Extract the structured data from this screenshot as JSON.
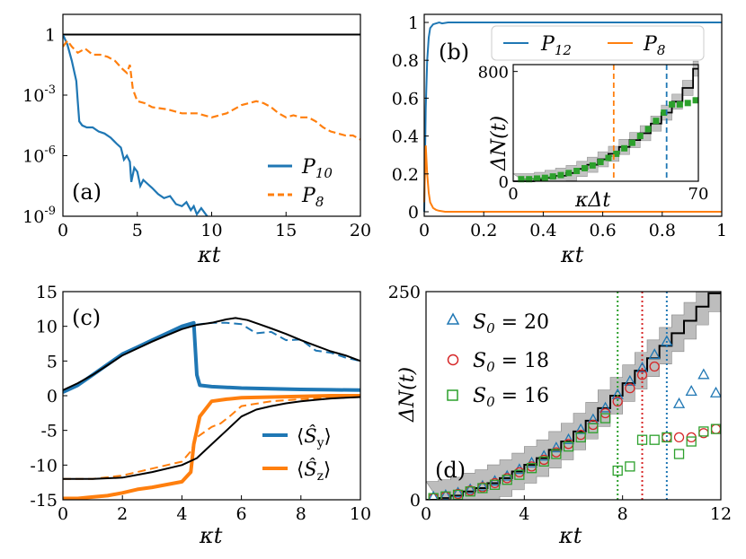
{
  "colors": {
    "blue": "#1f77b4",
    "orange": "#ff7f0e",
    "green": "#2ca02c",
    "red": "#d62728",
    "black": "#000000",
    "band": "#bdbdbd"
  },
  "chart_data": [
    {
      "panel": "(a)",
      "type": "line",
      "xlabel": "κt",
      "ylabel": "",
      "xlim": [
        0,
        20
      ],
      "ylim_log10": [
        -9,
        1
      ],
      "yscale": "log",
      "xticks": [
        "0",
        "5",
        "10",
        "15",
        "20"
      ],
      "yticks": [
        "10^-9",
        "10^-6",
        "10^-3",
        "1"
      ],
      "legend": "lower-right",
      "series": [
        {
          "name": "P10",
          "style": "solid",
          "color": "blue",
          "x": [
            0,
            0.3,
            0.6,
            0.9,
            1.0,
            1.1,
            1.3,
            1.6,
            2,
            2.4,
            2.8,
            3.2,
            3.6,
            3.9,
            4.1,
            4.3,
            4.5,
            4.6,
            4.8,
            5.0,
            5.2,
            5.4,
            5.7,
            6.0,
            6.4,
            6.8,
            7.2,
            7.6,
            8.0,
            8.3,
            8.6,
            8.8,
            9.0,
            9.3,
            9.6,
            9.8
          ],
          "log10y": [
            0,
            -0.5,
            -1.3,
            -2.3,
            -3.3,
            -4.3,
            -4.5,
            -4.6,
            -4.6,
            -4.8,
            -4.9,
            -5.1,
            -5.4,
            -5.6,
            -6.2,
            -6.0,
            -6.3,
            -7.3,
            -6.6,
            -6.8,
            -7.5,
            -7.2,
            -7.4,
            -7.6,
            -7.9,
            -8.1,
            -8.0,
            -8.4,
            -8.5,
            -8.3,
            -8.7,
            -8.5,
            -8.9,
            -8.6,
            -8.9,
            -9.1
          ]
        },
        {
          "name": "P8",
          "style": "dashed",
          "color": "orange",
          "x": [
            0,
            0.3,
            0.6,
            1.0,
            1.5,
            2.0,
            2.5,
            3.0,
            3.5,
            4.0,
            4.3,
            4.5,
            4.7,
            5.0,
            5.5,
            6.0,
            7.0,
            8.0,
            9.0,
            10.0,
            11.0,
            11.5,
            12.0,
            12.5,
            13.0,
            13.5,
            14.0,
            14.5,
            15.0,
            15.5,
            16.0,
            16.5,
            17.0,
            17.5,
            18.0,
            18.5,
            19.0,
            19.5,
            20.0
          ],
          "log10y": [
            -0.6,
            -0.3,
            -0.6,
            -0.9,
            -0.7,
            -1.0,
            -1.0,
            -1.1,
            -1.3,
            -1.7,
            -1.9,
            -1.5,
            -2.7,
            -3.3,
            -3.4,
            -3.6,
            -3.7,
            -3.9,
            -3.9,
            -4.1,
            -3.9,
            -3.7,
            -3.5,
            -3.4,
            -3.3,
            -3.4,
            -3.6,
            -3.9,
            -4.1,
            -4.0,
            -4.1,
            -4.1,
            -4.3,
            -4.6,
            -4.8,
            -4.9,
            -5.0,
            -5.0,
            -5.2
          ]
        }
      ],
      "legend_entries": [
        "P10",
        "P8"
      ]
    },
    {
      "panel": "(b)",
      "type": "line",
      "xlabel": "κt",
      "ylabel": "",
      "xlim": [
        0,
        1
      ],
      "ylim": [
        0,
        1
      ],
      "xticks": [
        "0",
        "0.2",
        "0.4",
        "0.6",
        "0.8",
        "1"
      ],
      "yticks": [
        "0",
        "0.2",
        "0.4",
        "0.6",
        "0.8",
        "1"
      ],
      "legend": "upper-center",
      "series": [
        {
          "name": "P12",
          "color": "blue",
          "x": [
            0,
            0.005,
            0.01,
            0.015,
            0.02,
            0.03,
            0.04,
            0.05,
            0.06,
            0.08,
            1.0
          ],
          "y": [
            0,
            0.55,
            0.8,
            0.92,
            0.97,
            0.99,
            0.995,
            1.0,
            0.995,
            1.0,
            1.0
          ]
        },
        {
          "name": "P8",
          "color": "orange",
          "x": [
            0,
            0.005,
            0.01,
            0.015,
            0.02,
            0.03,
            0.04,
            0.05,
            0.07,
            1.0
          ],
          "y": [
            0.05,
            0.35,
            0.2,
            0.1,
            0.05,
            0.02,
            0.01,
            0.005,
            0.0,
            0.0
          ]
        }
      ],
      "legend_entries": [
        "P12",
        "P8"
      ],
      "inset": {
        "xlabel": "κΔt",
        "ylabel": "ΔN(t)",
        "xlim": [
          0,
          70
        ],
        "ylim": [
          0,
          850
        ],
        "xticks": [
          "0",
          "70"
        ],
        "yticks": [
          "0",
          "800"
        ],
        "vlines": [
          {
            "x": 38,
            "color": "orange"
          },
          {
            "x": 58,
            "color": "blue"
          }
        ],
        "staircase_x": [
          0,
          4,
          8,
          12,
          16,
          20,
          24,
          28,
          32,
          36,
          40,
          44,
          48,
          52,
          56,
          60,
          64,
          68,
          70
        ],
        "staircase_y": [
          0,
          0,
          10,
          25,
          40,
          60,
          90,
          120,
          160,
          200,
          250,
          300,
          350,
          420,
          500,
          580,
          680,
          820,
          820
        ],
        "green_x": [
          3,
          6,
          9,
          12,
          15,
          18,
          21,
          24,
          27,
          30,
          33,
          36,
          39,
          42,
          45,
          48,
          51,
          54,
          57,
          60,
          63,
          66,
          69
        ],
        "green_y": [
          15,
          15,
          20,
          25,
          35,
          45,
          60,
          75,
          95,
          115,
          140,
          170,
          200,
          240,
          280,
          330,
          380,
          440,
          500,
          560,
          560,
          570,
          590
        ]
      }
    },
    {
      "panel": "(c)",
      "type": "line",
      "xlabel": "κt",
      "ylabel": "",
      "xlim": [
        0,
        10
      ],
      "ylim": [
        -15,
        15
      ],
      "xticks": [
        "0",
        "2",
        "4",
        "6",
        "8",
        "10"
      ],
      "yticks": [
        "-15",
        "-10",
        "-5",
        "0",
        "5",
        "10",
        "15"
      ],
      "legend": "lower-right",
      "legend_entries": [
        "⟨Ŝ_y⟩",
        "⟨Ŝ_z⟩"
      ],
      "series": [
        {
          "name": "Sy thick",
          "color": "blue",
          "width": 4,
          "x": [
            0,
            0.5,
            1,
            1.5,
            2,
            2.5,
            3,
            3.5,
            4,
            4.4,
            4.5,
            4.6,
            5,
            6,
            7,
            8,
            9,
            10
          ],
          "y": [
            0.5,
            1.5,
            3,
            4.5,
            6,
            7,
            8,
            9,
            10,
            10.5,
            3,
            1.5,
            1.3,
            1.1,
            1.0,
            0.9,
            0.85,
            0.8
          ]
        },
        {
          "name": "Sy dashed",
          "color": "blue",
          "style": "dashed",
          "width": 2,
          "x": [
            0,
            1,
            2,
            3,
            4,
            5,
            5.5,
            6,
            6.5,
            7,
            7.5,
            8,
            8.5,
            9,
            9.5,
            10
          ],
          "y": [
            0.5,
            3,
            6,
            8,
            10,
            10.5,
            10.5,
            10.3,
            9,
            9.2,
            8,
            8.1,
            6.5,
            6.2,
            5.5,
            5.0
          ]
        },
        {
          "name": "Sy black",
          "color": "black",
          "width": 2,
          "x": [
            0,
            0.5,
            1,
            1.5,
            2,
            2.5,
            3,
            3.5,
            4,
            4.5,
            5,
            5.5,
            5.8,
            6.2,
            6.6,
            7,
            7.5,
            8,
            8.5,
            9,
            9.5,
            10
          ],
          "y": [
            0.8,
            1.8,
            3,
            4.4,
            5.8,
            6.8,
            7.8,
            8.7,
            9.6,
            10.2,
            10.5,
            11,
            11.2,
            10.9,
            10.3,
            9.7,
            8.9,
            8.0,
            7.2,
            6.4,
            5.8,
            5.0
          ]
        },
        {
          "name": "Sz thick",
          "color": "orange",
          "width": 4,
          "x": [
            0,
            0.5,
            1,
            1.5,
            2,
            2.5,
            3,
            3.5,
            4,
            4.3,
            4.4,
            4.5,
            4.6,
            5.0,
            5.5,
            6,
            7,
            8,
            9,
            10
          ],
          "y": [
            -14.8,
            -14.8,
            -14.6,
            -14.4,
            -14.0,
            -13.5,
            -13.2,
            -12.8,
            -12.4,
            -11,
            -7,
            -5,
            -3,
            -0.8,
            -0.5,
            -0.3,
            -0.2,
            -0.1,
            0,
            0
          ]
        },
        {
          "name": "Sz dashed",
          "color": "orange",
          "style": "dashed",
          "width": 2,
          "x": [
            0,
            1,
            2,
            3,
            4,
            4.3,
            4.5,
            5,
            5.3,
            5.6,
            6,
            7,
            8,
            9,
            10
          ],
          "y": [
            -12,
            -12,
            -11.5,
            -10.5,
            -9.5,
            -8,
            -6,
            -4.5,
            -4,
            -3,
            -1.5,
            -0.8,
            -0.5,
            -0.3,
            -0.2
          ]
        },
        {
          "name": "Sz black",
          "color": "black",
          "width": 2,
          "x": [
            0,
            1,
            2,
            3,
            4,
            4.5,
            5,
            5.5,
            6,
            6.5,
            7,
            7.5,
            8,
            8.5,
            9,
            9.5,
            10
          ],
          "y": [
            -12,
            -12,
            -11.8,
            -11.0,
            -10.0,
            -9.0,
            -7,
            -5,
            -3,
            -2,
            -1.5,
            -1.1,
            -0.8,
            -0.6,
            -0.4,
            -0.3,
            -0.2
          ]
        }
      ]
    },
    {
      "panel": "(d)",
      "type": "scatter",
      "xlabel": "κt",
      "ylabel": "ΔN(t)",
      "xlim": [
        0,
        12
      ],
      "ylim": [
        0,
        250
      ],
      "xticks": [
        "0",
        "4",
        "8",
        "12"
      ],
      "yticks": [
        "0",
        "250"
      ],
      "legend": "upper-left",
      "legend_entries": [
        "S0 = 20",
        "S0 = 18",
        "S0 = 16"
      ],
      "vlines": [
        {
          "x": 7.8,
          "color": "green"
        },
        {
          "x": 8.8,
          "color": "red"
        },
        {
          "x": 9.8,
          "color": "blue"
        }
      ],
      "staircase_x": [
        0,
        0.5,
        1,
        1.5,
        2,
        2.5,
        3,
        3.5,
        4,
        4.5,
        5,
        5.5,
        6,
        6.5,
        7,
        7.5,
        8,
        8.5,
        9,
        9.5,
        10,
        10.5,
        11,
        11.5,
        12
      ],
      "staircase_y": [
        0,
        2,
        5,
        10,
        14,
        20,
        26,
        34,
        42,
        50,
        60,
        70,
        82,
        95,
        110,
        125,
        140,
        155,
        170,
        185,
        200,
        215,
        232,
        248,
        250
      ],
      "series": [
        {
          "name": "S0 = 20",
          "marker": "triangle",
          "color": "blue",
          "x": [
            0.3,
            0.8,
            1.3,
            1.8,
            2.3,
            2.8,
            3.3,
            3.8,
            4.3,
            4.8,
            5.3,
            5.8,
            6.3,
            6.8,
            7.3,
            7.8,
            8.3,
            8.8,
            9.3,
            9.8,
            10.3,
            10.8,
            11.3,
            11.8
          ],
          "y": [
            3,
            5,
            8,
            12,
            16,
            22,
            28,
            36,
            44,
            52,
            62,
            72,
            84,
            96,
            110,
            126,
            142,
            158,
            174,
            190,
            115,
            130,
            150,
            128
          ]
        },
        {
          "name": "S0 = 18",
          "marker": "circle",
          "color": "red",
          "x": [
            0.3,
            0.8,
            1.3,
            1.8,
            2.3,
            2.8,
            3.3,
            3.8,
            4.3,
            4.8,
            5.3,
            5.8,
            6.3,
            6.8,
            7.3,
            7.8,
            8.3,
            8.8,
            9.3,
            9.8,
            10.3,
            10.8,
            11.3,
            11.8
          ],
          "y": [
            2,
            4,
            7,
            11,
            15,
            20,
            26,
            33,
            40,
            48,
            57,
            67,
            78,
            90,
            104,
            118,
            134,
            150,
            160,
            75,
            75,
            75,
            80,
            85
          ]
        },
        {
          "name": "S0 = 16",
          "marker": "square",
          "color": "green",
          "x": [
            0.3,
            0.8,
            1.3,
            1.8,
            2.3,
            2.8,
            3.3,
            3.8,
            4.3,
            4.8,
            5.3,
            5.8,
            6.3,
            6.8,
            7.3,
            7.8,
            8.3,
            8.8,
            9.3,
            9.8,
            10.3,
            10.8,
            11.3,
            11.8
          ],
          "y": [
            2,
            4,
            6,
            10,
            14,
            18,
            24,
            30,
            38,
            46,
            55,
            64,
            75,
            86,
            98,
            35,
            40,
            72,
            72,
            75,
            55,
            70,
            82,
            85
          ]
        }
      ]
    }
  ]
}
